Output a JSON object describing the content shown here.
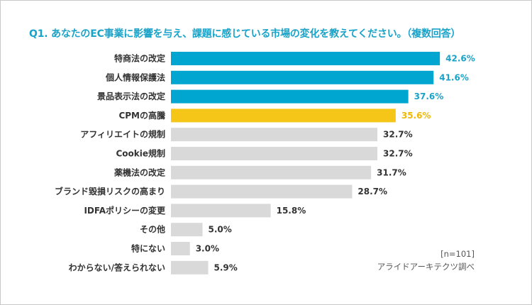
{
  "chart_data": {
    "type": "bar",
    "orientation": "horizontal",
    "title": "Q1. あなたのEC事業に影響を与え、課題に感じている市場の変化を教えてください。（複数回答）",
    "categories": [
      "特商法の改定",
      "個人情報保護法",
      "景品表示法の改定",
      "CPMの高騰",
      "アフィリエイトの規制",
      "Cookie規制",
      "薬機法の改定",
      "ブランド毀損リスクの高まり",
      "IDFAポリシーの変更",
      "その他",
      "特にない",
      "わからない/答えられない"
    ],
    "values": [
      42.6,
      41.6,
      37.6,
      35.6,
      32.7,
      32.7,
      31.7,
      28.7,
      15.8,
      5.0,
      3.0,
      5.9
    ],
    "value_labels": [
      "42.6%",
      "41.6%",
      "37.6%",
      "35.6%",
      "32.7%",
      "32.7%",
      "31.7%",
      "28.7%",
      "15.8%",
      "5.0%",
      "3.0%",
      "5.9%"
    ],
    "bar_colors": [
      "#00a6cf",
      "#00a6cf",
      "#00a6cf",
      "#f5c518",
      "#d9d9d9",
      "#d9d9d9",
      "#d9d9d9",
      "#d9d9d9",
      "#d9d9d9",
      "#d9d9d9",
      "#d9d9d9",
      "#d9d9d9"
    ],
    "label_colors": [
      "#1aa3c9",
      "#1aa3c9",
      "#1aa3c9",
      "#f0b800",
      "#333333",
      "#333333",
      "#333333",
      "#333333",
      "#333333",
      "#333333",
      "#333333",
      "#333333"
    ],
    "xlim": [
      0,
      50
    ],
    "grid": false,
    "legend": "none"
  },
  "notes": {
    "sample": "[n=101]",
    "source": "アライドアーキテクツ調べ"
  }
}
